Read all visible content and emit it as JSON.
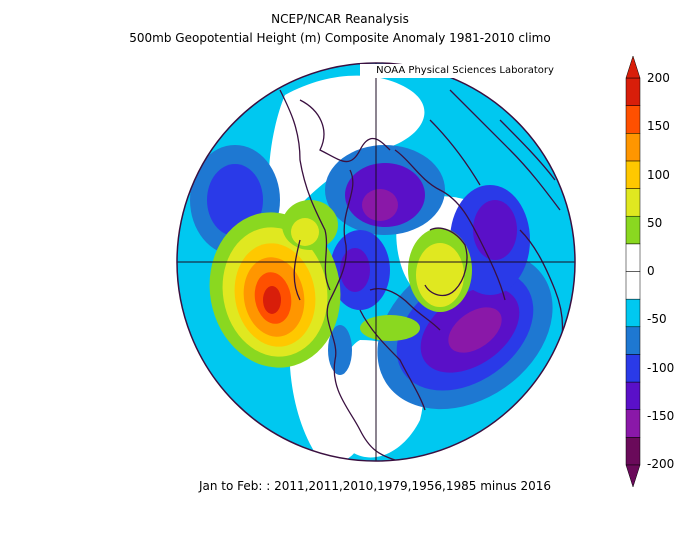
{
  "header": {
    "line1": "NCEP/NCAR Reanalysis",
    "line2": "500mb Geopotential Height (m) Composite Anomaly 1981-2010 climo"
  },
  "credit": "NOAA Physical Sciences Laboratory",
  "footer": "Jan to Feb: : 2011,2011,2010,1979,1956,1985 minus 2016",
  "colorbar": {
    "labels": [
      "200",
      "150",
      "100",
      "50",
      "0",
      "-50",
      "-100",
      "-150",
      "-200"
    ],
    "colors": [
      "#6a0a5a",
      "#8a18a8",
      "#5a10c8",
      "#2a3ae8",
      "#1e78d2",
      "#00c8f0",
      "#ffffff",
      "#ffffff",
      "#8ad820",
      "#e0e820",
      "#ffc800",
      "#ff9600",
      "#ff5000",
      "#d81e0a"
    ]
  },
  "map": {
    "projection": "north-polar-stereographic",
    "variable": "500mb geopotential height anomaly",
    "units": "m",
    "features": [
      {
        "name": "positive-anomaly-north-pacific",
        "sign": "positive",
        "peak": 190
      },
      {
        "name": "positive-anomaly-greenland-atlantic",
        "sign": "positive",
        "peak": 110
      },
      {
        "name": "positive-anomaly-west-north-america",
        "sign": "positive",
        "peak": 60
      },
      {
        "name": "negative-anomaly-north-atlantic-europe",
        "sign": "negative",
        "peak": -150
      },
      {
        "name": "negative-anomaly-siberia",
        "sign": "negative",
        "peak": -130
      },
      {
        "name": "negative-anomaly-north-pole",
        "sign": "negative",
        "peak": -100
      },
      {
        "name": "negative-anomaly-east-asia",
        "sign": "negative",
        "peak": -110
      },
      {
        "name": "negative-anomaly-north-pacific-west",
        "sign": "negative",
        "peak": -70
      }
    ]
  }
}
